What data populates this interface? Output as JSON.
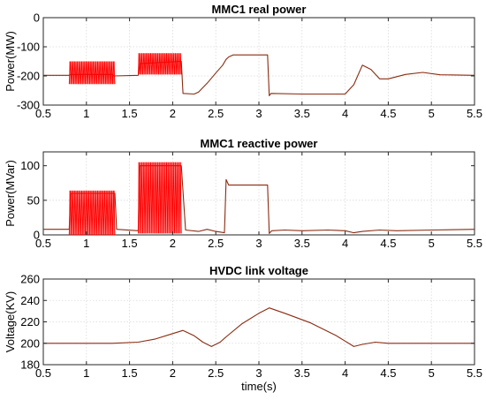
{
  "chart_data": [
    {
      "type": "line",
      "title": "MMC1 real power",
      "ylabel": "Power(MW)",
      "xlabel": "",
      "xlim": [
        0.5,
        5.5
      ],
      "ylim": [
        -300,
        0
      ],
      "xticks": [
        0.5,
        1,
        1.5,
        2,
        2.5,
        3,
        3.5,
        4,
        4.5,
        5,
        5.5
      ],
      "yticks": [
        -300,
        -200,
        -100,
        0
      ],
      "xtick_labels": [
        "0.5",
        "1",
        "1.5",
        "2",
        "2.5",
        "3",
        "3.5",
        "4",
        "4.5",
        "5",
        "5.5"
      ],
      "ytick_labels": [
        "-300",
        "-200",
        "-100",
        "0"
      ],
      "grid": true,
      "series": [
        {
          "color": "#8b2b10",
          "x": [
            0.5,
            0.8,
            0.82,
            1.3,
            1.32,
            1.6,
            1.62,
            2.1,
            2.12,
            2.25,
            2.3,
            2.4,
            2.5,
            2.58,
            2.62,
            2.65,
            2.7,
            3.0,
            3.1,
            3.12,
            3.14,
            3.5,
            4.0,
            4.1,
            4.2,
            4.3,
            4.4,
            4.5,
            4.7,
            4.9,
            5.1,
            5.5
          ],
          "y": [
            -198,
            -198,
            -195,
            -195,
            -200,
            -198,
            -158,
            -150,
            -260,
            -262,
            -255,
            -225,
            -190,
            -163,
            -143,
            -135,
            -128,
            -128,
            -128,
            -268,
            -260,
            -262,
            -262,
            -230,
            -163,
            -178,
            -210,
            -210,
            -195,
            -188,
            -196,
            -198
          ]
        },
        {
          "color": "#ff0000",
          "oscillation": [
            {
              "x_start": 0.8,
              "x_end": 1.33,
              "lower": -228,
              "upper": -150
            },
            {
              "x_start": 1.6,
              "x_end": 2.1,
              "lower": -195,
              "upper": -122
            }
          ]
        }
      ]
    },
    {
      "type": "line",
      "title": "MMC1 reactive power",
      "ylabel": "Power(MVar)",
      "xlabel": "",
      "xlim": [
        0.5,
        5.5
      ],
      "ylim": [
        0,
        120
      ],
      "xticks": [
        0.5,
        1,
        1.5,
        2,
        2.5,
        3,
        3.5,
        4,
        4.5,
        5,
        5.5
      ],
      "yticks": [
        0,
        50,
        100
      ],
      "xtick_labels": [
        "0.5",
        "1",
        "1.5",
        "2",
        "2.5",
        "3",
        "3.5",
        "4",
        "4.5",
        "5",
        "5.5"
      ],
      "ytick_labels": [
        "0",
        "50",
        "100"
      ],
      "grid": true,
      "series": [
        {
          "color": "#8b2b10",
          "x": [
            0.5,
            0.8,
            0.82,
            1.33,
            1.35,
            1.6,
            1.62,
            2.1,
            2.15,
            2.3,
            2.4,
            2.5,
            2.6,
            2.62,
            2.65,
            3.1,
            3.12,
            3.15,
            3.3,
            3.5,
            3.8,
            4.0,
            4.1,
            4.2,
            4.4,
            4.6,
            5.0,
            5.5
          ],
          "y": [
            8,
            8,
            60,
            60,
            8,
            6,
            100,
            100,
            7,
            5,
            8,
            5,
            3,
            80,
            72,
            72,
            2,
            6,
            7,
            6,
            7,
            6,
            3,
            5,
            7,
            6,
            7,
            8
          ]
        },
        {
          "color": "#ff0000",
          "oscillation": [
            {
              "x_start": 0.8,
              "x_end": 1.33,
              "lower": 0,
              "upper": 64
            },
            {
              "x_start": 1.6,
              "x_end": 2.1,
              "lower": 2,
              "upper": 105
            }
          ]
        }
      ]
    },
    {
      "type": "line",
      "title": "HVDC link voltage",
      "ylabel": "Voltage(KV)",
      "xlabel": "time(s)",
      "xlim": [
        0.5,
        5.5
      ],
      "ylim": [
        180,
        260
      ],
      "xticks": [
        0.5,
        1,
        1.5,
        2,
        2.5,
        3,
        3.5,
        4,
        4.5,
        5,
        5.5
      ],
      "yticks": [
        180,
        200,
        220,
        240,
        260
      ],
      "xtick_labels": [
        "0.5",
        "1",
        "1.5",
        "2",
        "2.5",
        "3",
        "3.5",
        "4",
        "4.5",
        "5",
        "5.5"
      ],
      "ytick_labels": [
        "180",
        "200",
        "220",
        "240",
        "260"
      ],
      "grid": true,
      "series": [
        {
          "color": "#8b2b10",
          "x": [
            0.5,
            0.8,
            1.3,
            1.6,
            1.8,
            2.0,
            2.12,
            2.25,
            2.35,
            2.45,
            2.55,
            2.62,
            2.8,
            3.0,
            3.12,
            3.3,
            3.6,
            3.9,
            4.0,
            4.1,
            4.2,
            4.35,
            4.5,
            4.7,
            5.0,
            5.5
          ],
          "y": [
            200,
            200,
            200,
            201,
            204,
            209,
            212,
            207,
            201,
            197,
            201,
            206,
            218,
            228,
            233,
            228,
            219,
            207,
            202,
            197,
            199,
            201,
            200,
            200,
            200,
            200
          ]
        }
      ]
    }
  ]
}
